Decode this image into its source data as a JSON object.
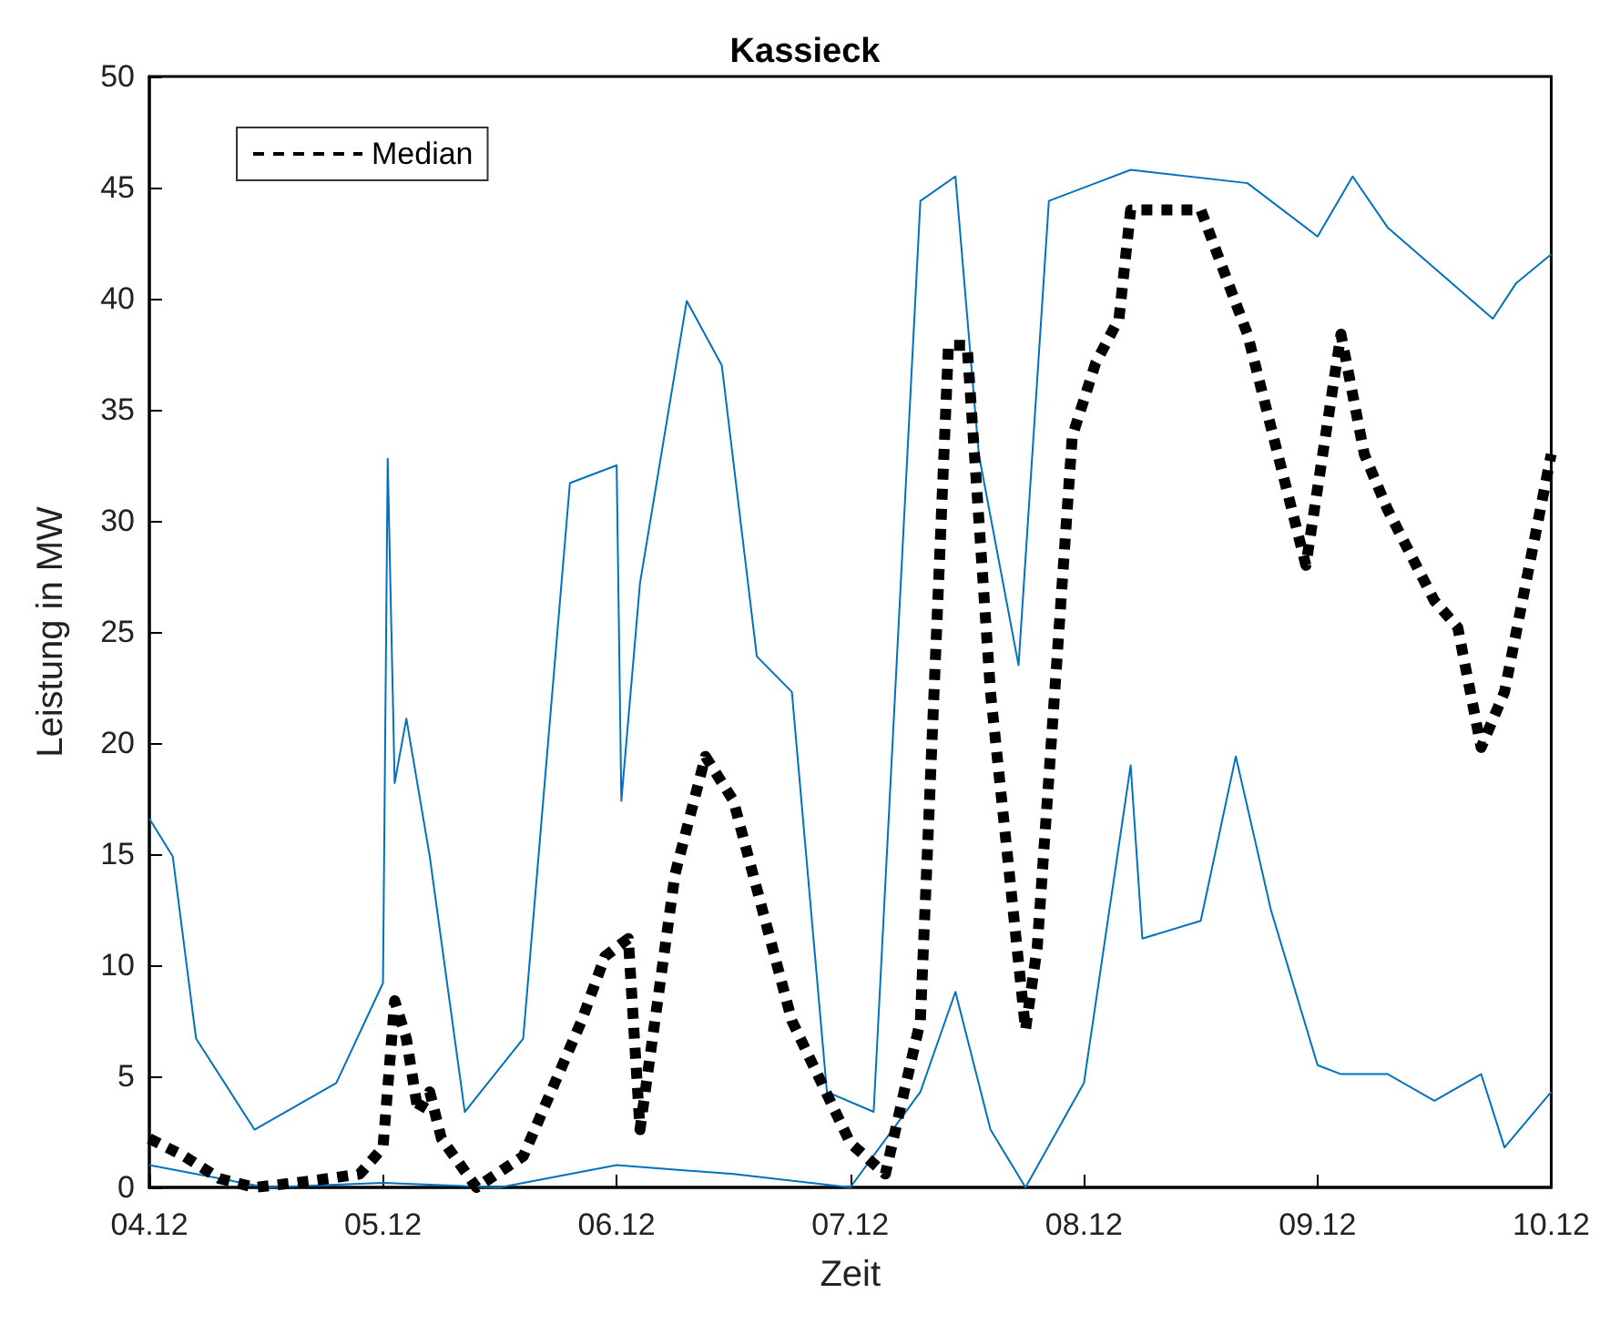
{
  "chart_data": {
    "type": "line",
    "title": "Kassieck",
    "xlabel": "Zeit",
    "ylabel": "Leistung in MW",
    "xlim": [
      "--12-04",
      "--12-10"
    ],
    "xticks": [
      {
        "value": "--12-04",
        "label": "04.12"
      },
      {
        "value": "--12-05",
        "label": "05.12"
      },
      {
        "value": "--12-06",
        "label": "06.12"
      },
      {
        "value": "--12-07",
        "label": "07.12"
      },
      {
        "value": "--12-08",
        "label": "08.12"
      },
      {
        "value": "--12-09",
        "label": "09.12"
      },
      {
        "value": "--12-10",
        "label": "10.12"
      }
    ],
    "ylim": [
      0,
      50
    ],
    "yticks": [
      0,
      5,
      10,
      15,
      20,
      25,
      30,
      35,
      40,
      45,
      50
    ],
    "grid": false,
    "legend": "top left",
    "marker": "none",
    "series": [
      {
        "color": "#0072bd",
        "line_style": "solid",
        "x": [
          "--12-04T00:00",
          "--12-04T02:24",
          "--12-04T04:48",
          "--12-04T10:48",
          "--12-04T19:12",
          "--12-05T00:00",
          "--12-05T00:29",
          "--12-05T01:12",
          "--12-05T02:24",
          "--12-05T04:48",
          "--12-05T08:24",
          "--12-05T14:24",
          "--12-05T19:12",
          "--12-06T00:00",
          "--12-06T00:29",
          "--12-06T02:24",
          "--12-06T07:12",
          "--12-06T10:48",
          "--12-06T14:24",
          "--12-06T18:00",
          "--12-06T21:36",
          "--12-07T02:24",
          "--12-07T07:12",
          "--12-07T10:48",
          "--12-07T13:12",
          "--12-07T17:17",
          "--12-07T20:24",
          "--12-08T01:12",
          "--12-08T04:48",
          "--12-08T16:48",
          "--12-09T00:00",
          "--12-09T03:36",
          "--12-09T07:12",
          "--12-09T18:00",
          "--12-09T20:24",
          "--12-10T00:00"
        ],
        "values": [
          16.6,
          14.9,
          6.7,
          2.6,
          4.7,
          9.2,
          32.8,
          18.2,
          21.1,
          14.9,
          3.4,
          6.7,
          31.7,
          32.5,
          17.4,
          27.2,
          39.9,
          37.0,
          23.9,
          22.3,
          4.3,
          3.4,
          44.4,
          45.5,
          33.0,
          23.5,
          44.4,
          45.2,
          45.8,
          45.2,
          42.8,
          45.5,
          43.2,
          39.1,
          40.7,
          42.0
        ]
      },
      {
        "color": "#0072bd",
        "line_style": "solid",
        "x": [
          "--12-04T00:00",
          "--12-04T12:00",
          "--12-05T00:00",
          "--12-05T12:00",
          "--12-06T00:00",
          "--12-06T12:00",
          "--12-07T00:00",
          "--12-07T07:12",
          "--12-07T10:48",
          "--12-07T14:24",
          "--12-07T18:00",
          "--12-08T00:00",
          "--12-08T04:48",
          "--12-08T06:00",
          "--12-08T12:00",
          "--12-08T15:36",
          "--12-08T19:12",
          "--12-09T00:00",
          "--12-09T02:24",
          "--12-09T07:12",
          "--12-09T12:00",
          "--12-09T16:48",
          "--12-09T19:12",
          "--12-10T00:00"
        ],
        "values": [
          1.0,
          0,
          0.2,
          0,
          1.0,
          0.6,
          0,
          4.3,
          8.8,
          2.6,
          0,
          4.7,
          19.0,
          11.2,
          12.0,
          19.4,
          12.5,
          5.5,
          5.1,
          5.1,
          3.9,
          5.1,
          1.8,
          4.3
        ]
      },
      {
        "name": "Median",
        "color": "#000000",
        "line_style": "dotted",
        "x": [
          "--12-04T00:00",
          "--12-04T03:36",
          "--12-04T07:12",
          "--12-04T10:48",
          "--12-04T16:48",
          "--12-04T21:36",
          "--12-05T00:00",
          "--12-05T01:12",
          "--12-05T02:24",
          "--12-05T03:36",
          "--12-05T04:48",
          "--12-05T06:00",
          "--12-05T09:36",
          "--12-05T14:24",
          "--12-05T20:24",
          "--12-05T22:48",
          "--12-06T01:12",
          "--12-06T02:24",
          "--12-06T06:00",
          "--12-06T09:07",
          "--12-06T12:00",
          "--12-06T18:00",
          "--12-07T00:00",
          "--12-07T03:36",
          "--12-07T07:12",
          "--12-07T10:05",
          "--12-07T12:00",
          "--12-07T14:24",
          "--12-07T18:00",
          "--12-07T19:12",
          "--12-07T22:48",
          "--12-08T01:12",
          "--12-08T03:36",
          "--12-08T04:48",
          "--12-08T12:00",
          "--12-08T16:48",
          "--12-08T22:48",
          "--12-09T02:24",
          "--12-09T04:48",
          "--12-09T07:12",
          "--12-09T12:00",
          "--12-09T14:24",
          "--12-09T16:48",
          "--12-09T19:12",
          "--12-10T00:00"
        ],
        "values": [
          2.2,
          1.4,
          0.4,
          0,
          0.3,
          0.6,
          1.8,
          8.4,
          6.7,
          3.4,
          4.3,
          2.2,
          0,
          1.4,
          7.5,
          10.4,
          11.2,
          2.6,
          14.1,
          19.4,
          17.4,
          7.5,
          2.0,
          0.6,
          7.5,
          37.9,
          37.9,
          22.3,
          7.1,
          10.8,
          33.8,
          37.1,
          39.1,
          44.0,
          44.0,
          38.4,
          28.0,
          38.4,
          33.0,
          30.5,
          26.4,
          25.2,
          19.8,
          22.3,
          33.0
        ]
      }
    ]
  }
}
